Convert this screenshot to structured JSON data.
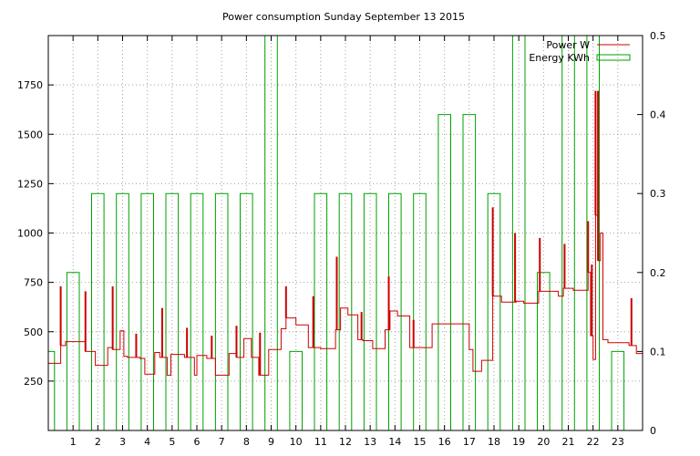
{
  "chart_data": {
    "type": "line",
    "title": "Power consumption Sunday September 13 2015",
    "x_ticks": [
      "1",
      "2",
      "3",
      "4",
      "5",
      "6",
      "7",
      "8",
      "9",
      "10",
      "11",
      "12",
      "13",
      "14",
      "15",
      "16",
      "17",
      "18",
      "19",
      "20",
      "21",
      "22",
      "23"
    ],
    "xlim": [
      0,
      24
    ],
    "y_left": {
      "ylim": [
        0,
        2000
      ],
      "ticks": [
        "250",
        "500",
        "750",
        "1000",
        "1250",
        "1500",
        "1750"
      ]
    },
    "y_right": {
      "ylim": [
        0,
        0.5
      ],
      "ticks": [
        "0",
        "0.1",
        "0.2",
        "0.3",
        "0.4",
        "0.5"
      ]
    },
    "grid": true,
    "legend_position": "top-right",
    "series": [
      {
        "name": "Power W",
        "axis": "left",
        "color": "#cc0000",
        "style": "step",
        "points": [
          [
            0.0,
            340
          ],
          [
            0.5,
            340
          ],
          [
            0.5,
            430
          ],
          [
            0.7,
            430
          ],
          [
            0.7,
            450
          ],
          [
            1.5,
            450
          ],
          [
            1.5,
            400
          ],
          [
            1.9,
            400
          ],
          [
            1.9,
            330
          ],
          [
            2.4,
            330
          ],
          [
            2.4,
            420
          ],
          [
            2.6,
            420
          ],
          [
            2.6,
            410
          ],
          [
            2.9,
            410
          ],
          [
            2.9,
            505
          ],
          [
            3.05,
            505
          ],
          [
            3.05,
            375
          ],
          [
            3.2,
            375
          ],
          [
            3.2,
            370
          ],
          [
            3.7,
            370
          ],
          [
            3.7,
            365
          ],
          [
            3.9,
            365
          ],
          [
            3.9,
            285
          ],
          [
            4.3,
            285
          ],
          [
            4.3,
            395
          ],
          [
            4.5,
            395
          ],
          [
            4.5,
            370
          ],
          [
            4.8,
            370
          ],
          [
            4.8,
            280
          ],
          [
            4.95,
            280
          ],
          [
            4.95,
            385
          ],
          [
            5.5,
            385
          ],
          [
            5.5,
            370
          ],
          [
            5.9,
            370
          ],
          [
            5.9,
            280
          ],
          [
            6.0,
            280
          ],
          [
            6.0,
            380
          ],
          [
            6.4,
            380
          ],
          [
            6.4,
            365
          ],
          [
            6.75,
            365
          ],
          [
            6.75,
            280
          ],
          [
            7.3,
            280
          ],
          [
            7.3,
            390
          ],
          [
            7.6,
            390
          ],
          [
            7.6,
            370
          ],
          [
            7.9,
            370
          ],
          [
            7.9,
            465
          ],
          [
            8.2,
            465
          ],
          [
            8.2,
            370
          ],
          [
            8.5,
            370
          ],
          [
            8.5,
            280
          ],
          [
            8.9,
            280
          ],
          [
            8.9,
            410
          ],
          [
            9.4,
            410
          ],
          [
            9.4,
            515
          ],
          [
            9.6,
            515
          ],
          [
            9.6,
            570
          ],
          [
            10.0,
            570
          ],
          [
            10.0,
            535
          ],
          [
            10.5,
            535
          ],
          [
            10.5,
            420
          ],
          [
            11.0,
            420
          ],
          [
            11.0,
            415
          ],
          [
            11.6,
            415
          ],
          [
            11.6,
            510
          ],
          [
            11.8,
            510
          ],
          [
            11.8,
            620
          ],
          [
            12.1,
            620
          ],
          [
            12.1,
            585
          ],
          [
            12.5,
            585
          ],
          [
            12.5,
            460
          ],
          [
            12.7,
            460
          ],
          [
            12.7,
            455
          ],
          [
            13.1,
            455
          ],
          [
            13.1,
            415
          ],
          [
            13.6,
            415
          ],
          [
            13.6,
            510
          ],
          [
            13.8,
            510
          ],
          [
            13.8,
            605
          ],
          [
            14.1,
            605
          ],
          [
            14.1,
            580
          ],
          [
            14.6,
            580
          ],
          [
            14.6,
            420
          ],
          [
            15.5,
            420
          ],
          [
            15.5,
            540
          ],
          [
            17.0,
            540
          ],
          [
            17.0,
            410
          ],
          [
            17.15,
            410
          ],
          [
            17.15,
            300
          ],
          [
            17.5,
            300
          ],
          [
            17.5,
            355
          ],
          [
            17.95,
            355
          ],
          [
            17.95,
            680
          ],
          [
            18.3,
            680
          ],
          [
            18.3,
            650
          ],
          [
            18.9,
            650
          ],
          [
            18.9,
            655
          ],
          [
            19.2,
            655
          ],
          [
            19.2,
            645
          ],
          [
            19.8,
            645
          ],
          [
            19.8,
            705
          ],
          [
            20.6,
            705
          ],
          [
            20.6,
            680
          ],
          [
            20.8,
            680
          ],
          [
            20.8,
            720
          ],
          [
            21.2,
            720
          ],
          [
            21.2,
            710
          ],
          [
            21.8,
            710
          ],
          [
            21.8,
            800
          ],
          [
            21.9,
            800
          ],
          [
            21.9,
            480
          ],
          [
            22.0,
            480
          ],
          [
            22.0,
            360
          ],
          [
            22.1,
            360
          ],
          [
            22.1,
            1090
          ],
          [
            22.2,
            1090
          ],
          [
            22.2,
            860
          ],
          [
            22.3,
            860
          ],
          [
            22.3,
            1000
          ],
          [
            22.4,
            1000
          ],
          [
            22.4,
            460
          ],
          [
            22.6,
            460
          ],
          [
            22.6,
            445
          ],
          [
            23.45,
            445
          ],
          [
            23.45,
            430
          ],
          [
            23.75,
            430
          ],
          [
            23.75,
            390
          ],
          [
            24.0,
            390
          ]
        ],
        "spikes": [
          [
            0.5,
            730
          ],
          [
            1.5,
            705
          ],
          [
            2.6,
            730
          ],
          [
            3.55,
            490
          ],
          [
            4.6,
            620
          ],
          [
            5.6,
            520
          ],
          [
            6.6,
            480
          ],
          [
            7.6,
            530
          ],
          [
            8.55,
            495
          ],
          [
            9.6,
            730
          ],
          [
            10.7,
            680
          ],
          [
            11.65,
            880
          ],
          [
            12.65,
            600
          ],
          [
            13.75,
            780
          ],
          [
            14.75,
            560
          ],
          [
            17.95,
            1130
          ],
          [
            18.85,
            1000
          ],
          [
            19.85,
            975
          ],
          [
            20.85,
            945
          ],
          [
            21.8,
            1060
          ],
          [
            21.95,
            840
          ],
          [
            22.1,
            1720
          ],
          [
            22.2,
            1720
          ],
          [
            23.55,
            670
          ]
        ]
      },
      {
        "name": "Energy KWh",
        "axis": "right",
        "color": "#00a000",
        "style": "step",
        "points": [
          [
            0.0,
            0.1
          ],
          [
            0.25,
            0.1
          ],
          [
            0.25,
            0
          ],
          [
            0.75,
            0
          ],
          [
            0.75,
            0.2
          ],
          [
            1.25,
            0.2
          ],
          [
            1.25,
            0
          ],
          [
            1.75,
            0
          ],
          [
            1.75,
            0.3
          ],
          [
            2.25,
            0.3
          ],
          [
            2.25,
            0
          ],
          [
            2.75,
            0
          ],
          [
            2.75,
            0.3
          ],
          [
            3.25,
            0.3
          ],
          [
            3.25,
            0
          ],
          [
            3.75,
            0
          ],
          [
            3.75,
            0.3
          ],
          [
            4.25,
            0.3
          ],
          [
            4.25,
            0
          ],
          [
            4.75,
            0
          ],
          [
            4.75,
            0.3
          ],
          [
            5.25,
            0.3
          ],
          [
            5.25,
            0
          ],
          [
            5.75,
            0
          ],
          [
            5.75,
            0.3
          ],
          [
            6.25,
            0.3
          ],
          [
            6.25,
            0
          ],
          [
            6.75,
            0
          ],
          [
            6.75,
            0.3
          ],
          [
            7.25,
            0.3
          ],
          [
            7.25,
            0
          ],
          [
            7.75,
            0
          ],
          [
            7.75,
            0.3
          ],
          [
            8.25,
            0.3
          ],
          [
            8.25,
            0
          ],
          [
            8.75,
            0
          ],
          [
            8.75,
            0.5
          ],
          [
            9.25,
            0.5
          ],
          [
            9.25,
            0
          ],
          [
            9.75,
            0
          ],
          [
            9.75,
            0.1
          ],
          [
            10.25,
            0.1
          ],
          [
            10.25,
            0
          ],
          [
            10.75,
            0
          ],
          [
            10.75,
            0.3
          ],
          [
            11.25,
            0.3
          ],
          [
            11.25,
            0
          ],
          [
            11.75,
            0
          ],
          [
            11.75,
            0.3
          ],
          [
            12.25,
            0.3
          ],
          [
            12.25,
            0
          ],
          [
            12.75,
            0
          ],
          [
            12.75,
            0.3
          ],
          [
            13.25,
            0.3
          ],
          [
            13.25,
            0
          ],
          [
            13.75,
            0
          ],
          [
            13.75,
            0.3
          ],
          [
            14.25,
            0.3
          ],
          [
            14.25,
            0
          ],
          [
            14.75,
            0
          ],
          [
            14.75,
            0.3
          ],
          [
            15.25,
            0.3
          ],
          [
            15.25,
            0
          ],
          [
            15.75,
            0
          ],
          [
            15.75,
            0.4
          ],
          [
            16.25,
            0.4
          ],
          [
            16.25,
            0
          ],
          [
            16.75,
            0
          ],
          [
            16.75,
            0.4
          ],
          [
            17.25,
            0.4
          ],
          [
            17.25,
            0
          ],
          [
            17.75,
            0
          ],
          [
            17.75,
            0.3
          ],
          [
            18.25,
            0.3
          ],
          [
            18.25,
            0
          ],
          [
            18.75,
            0
          ],
          [
            18.75,
            0.5
          ],
          [
            19.25,
            0.5
          ],
          [
            19.25,
            0
          ],
          [
            19.75,
            0
          ],
          [
            19.75,
            0.2
          ],
          [
            20.25,
            0.2
          ],
          [
            20.25,
            0
          ],
          [
            20.75,
            0
          ],
          [
            20.75,
            0.5
          ],
          [
            21.25,
            0.5
          ],
          [
            21.25,
            0
          ],
          [
            21.75,
            0
          ],
          [
            21.75,
            0.5
          ],
          [
            22.25,
            0.5
          ],
          [
            22.25,
            0
          ],
          [
            22.75,
            0
          ],
          [
            22.75,
            0.1
          ],
          [
            23.25,
            0.1
          ],
          [
            23.25,
            0
          ],
          [
            24.0,
            0
          ]
        ]
      }
    ]
  }
}
